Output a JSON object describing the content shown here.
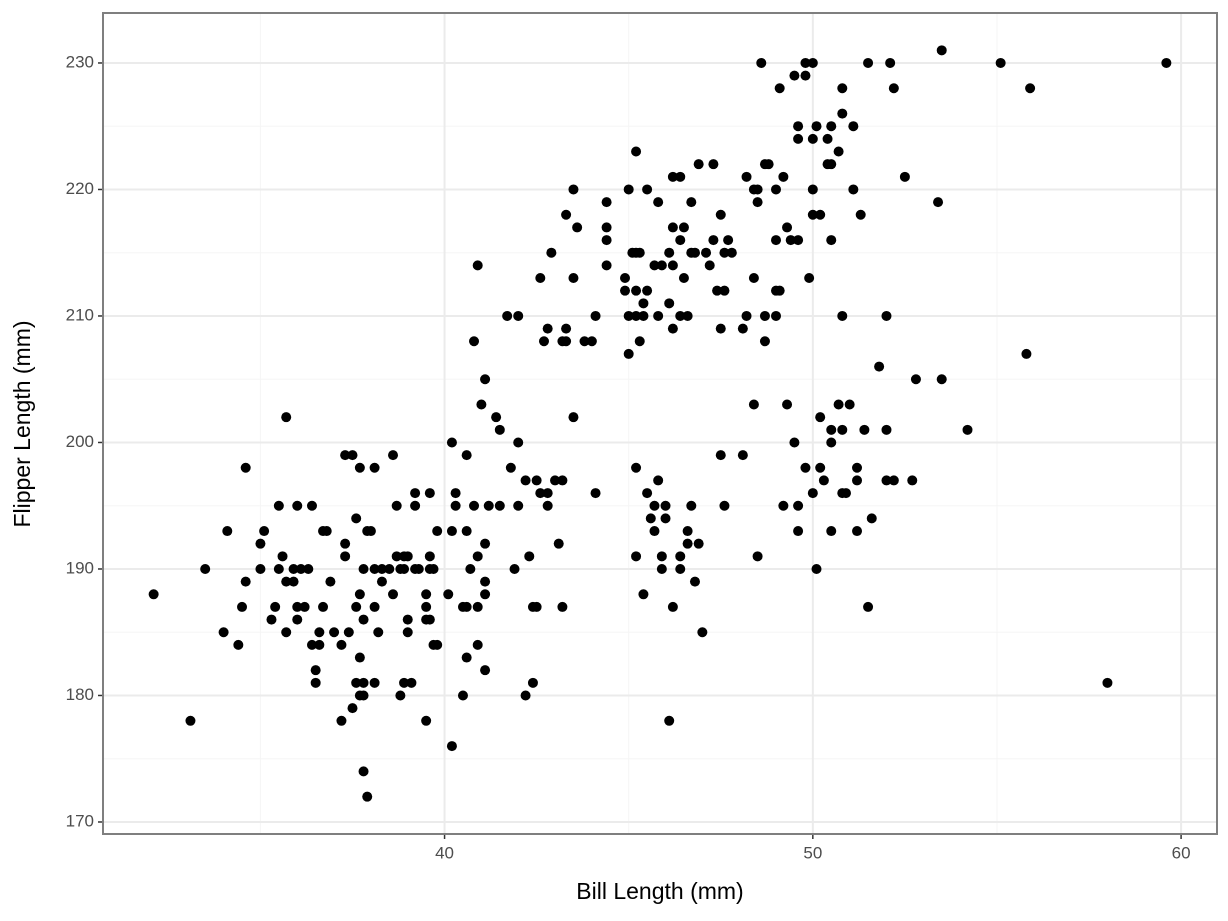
{
  "chart_data": {
    "type": "scatter",
    "x_label": "Bill Length (mm)",
    "y_label": "Flipper Length (mm)",
    "xlim": [
      30.725,
      60.975
    ],
    "ylim": [
      169.05,
      233.95
    ],
    "xticks": [
      40,
      50,
      60
    ],
    "yticks": [
      170,
      180,
      190,
      200,
      210,
      220,
      230
    ],
    "xminor": [
      35,
      45,
      55
    ],
    "yminor": [
      175,
      185,
      195,
      205,
      215,
      225
    ],
    "grid": true,
    "color": "#000000",
    "series": [
      {
        "color": "#000000",
        "x": [
          48.6,
          49.5,
          49.8,
          49.8,
          50.0,
          49.1,
          50.8,
          51.5,
          52.1,
          52.2,
          53.5,
          55.1,
          55.9,
          59.6,
          49.6,
          49.6,
          50.0,
          50.1,
          50.4,
          50.5,
          50.8,
          51.1,
          50.7,
          50.4,
          50.5,
          48.7,
          48.8,
          48.2,
          49.2,
          52.5,
          48.4,
          48.5,
          49.0,
          50.0,
          51.1,
          48.5,
          53.4,
          49.3,
          50.0,
          50.2,
          51.3,
          49.0,
          49.4,
          49.6,
          50.5,
          49.9,
          48.4,
          49.0,
          49.1,
          48.7,
          49.0,
          50.8,
          52.0,
          48.7,
          48.1,
          48.2,
          45.2,
          44.4,
          45.0,
          45.5,
          45.8,
          43.5,
          43.3,
          43.6,
          44.4,
          44.4,
          42.9,
          45.1,
          45.2,
          45.3,
          46.1,
          46.2,
          46.5,
          46.4,
          46.9,
          47.3,
          46.2,
          46.4,
          46.7,
          47.5,
          47.3,
          47.7,
          47.8,
          47.1,
          46.8,
          46.7,
          47.6,
          45.9,
          45.7,
          44.4,
          46.2,
          47.2,
          46.5,
          44.9,
          43.5,
          42.6,
          44.9,
          45.2,
          45.5,
          47.4,
          47.6,
          45.4,
          46.1,
          44.1,
          45.0,
          45.2,
          45.4,
          45.8,
          46.4,
          46.6,
          41.7,
          42.0,
          42.8,
          43.3,
          46.2,
          47.5,
          42.7,
          43.2,
          43.3,
          43.8,
          44.0,
          45.3,
          45.0,
          40.8,
          40.9,
          55.8,
          51.8,
          52.8,
          53.5,
          41.1,
          48.4,
          49.3,
          50.7,
          51.0,
          41.0,
          54.2,
          50.5,
          50.8,
          51.4,
          52.0,
          50.2,
          50.5,
          41.4,
          41.5,
          35.7,
          43.5,
          42.0,
          40.2,
          49.5,
          47.5,
          48.1,
          49.8,
          50.2,
          51.2,
          45.2,
          41.8,
          40.6,
          50.3,
          51.2,
          52.0,
          52.2,
          52.7,
          45.8,
          42.2,
          42.5,
          43.0,
          43.2,
          50.0,
          50.8,
          50.9,
          51.6,
          45.5,
          42.6,
          42.8,
          44.1,
          40.3,
          49.2,
          49.6,
          47.6,
          46.7,
          46.0,
          45.7,
          42.8,
          42.0,
          41.2,
          41.5,
          40.8,
          40.3,
          45.6,
          46.0,
          45.7,
          49.6,
          50.5,
          51.2,
          46.6,
          39.8,
          40.2,
          40.6,
          43.1,
          46.9,
          46.6,
          41.1,
          45.9,
          46.4,
          48.5,
          45.2,
          42.3,
          40.9,
          50.1,
          45.9,
          46.4,
          41.9,
          40.7,
          46.8,
          41.1,
          45.4,
          41.1,
          40.1,
          51.5,
          46.2,
          43.2,
          42.4,
          42.5,
          40.5,
          40.6,
          40.9,
          47.0,
          46.1,
          58.0,
          32.1,
          33.1,
          33.5,
          34.0,
          34.1,
          34.4,
          34.5,
          34.6,
          34.6,
          35.0,
          35.1,
          35.0,
          35.3,
          35.4,
          35.5,
          35.5,
          35.6,
          35.7,
          35.7,
          35.9,
          35.9,
          36.0,
          36.0,
          36.0,
          36.1,
          36.2,
          36.3,
          36.4,
          36.4,
          36.5,
          36.5,
          36.6,
          36.6,
          36.7,
          36.7,
          36.8,
          36.9,
          37.0,
          37.2,
          37.2,
          37.3,
          37.3,
          37.3,
          37.5,
          37.4,
          37.5,
          37.6,
          37.6,
          37.6,
          37.7,
          37.7,
          37.7,
          37.7,
          37.8,
          37.8,
          37.8,
          37.9,
          37.8,
          37.8,
          37.9,
          38.0,
          38.1,
          38.1,
          38.1,
          38.1,
          38.2,
          38.3,
          38.3,
          38.5,
          38.6,
          38.6,
          38.7,
          38.7,
          38.8,
          38.8,
          38.9,
          38.9,
          38.9,
          39.0,
          39.0,
          39.0,
          39.1,
          39.2,
          39.2,
          39.2,
          39.3,
          39.5,
          39.5,
          39.5,
          39.5,
          39.6,
          39.6,
          39.6,
          39.6,
          39.7,
          39.7,
          39.8,
          40.2,
          40.5,
          40.6,
          40.9,
          41.1,
          42.2,
          42.4
        ],
        "y": [
          230,
          229,
          229,
          230,
          230,
          228,
          228,
          230,
          230,
          228,
          231,
          230,
          228,
          230,
          225,
          224,
          224,
          225,
          224,
          225,
          226,
          225,
          223,
          222,
          222,
          222,
          222,
          221,
          221,
          221,
          220,
          220,
          220,
          220,
          220,
          219,
          219,
          217,
          218,
          218,
          218,
          216,
          216,
          216,
          216,
          213,
          213,
          212,
          212,
          210,
          210,
          210,
          210,
          208,
          209,
          210,
          223,
          219,
          220,
          220,
          219,
          220,
          218,
          217,
          217,
          216,
          215,
          215,
          215,
          215,
          215,
          217,
          217,
          216,
          222,
          222,
          221,
          221,
          219,
          218,
          216,
          216,
          215,
          215,
          215,
          215,
          215,
          214,
          214,
          214,
          214,
          214,
          213,
          213,
          213,
          213,
          212,
          212,
          212,
          212,
          212,
          211,
          211,
          210,
          210,
          210,
          210,
          210,
          210,
          210,
          210,
          210,
          209,
          209,
          209,
          209,
          208,
          208,
          208,
          208,
          208,
          208,
          207,
          208,
          214,
          207,
          206,
          205,
          205,
          205,
          203,
          203,
          203,
          203,
          203,
          201,
          201,
          201,
          201,
          201,
          202,
          200,
          202,
          201,
          202,
          202,
          200,
          200,
          200,
          199,
          199,
          198,
          198,
          198,
          198,
          198,
          199,
          197,
          197,
          197,
          197,
          197,
          197,
          197,
          197,
          197,
          197,
          196,
          196,
          196,
          194,
          196,
          196,
          196,
          196,
          196,
          195,
          195,
          195,
          195,
          195,
          195,
          195,
          195,
          195,
          195,
          195,
          195,
          194,
          194,
          193,
          193,
          193,
          193,
          193,
          193,
          193,
          193,
          192,
          192,
          192,
          192,
          191,
          191,
          191,
          191,
          191,
          191,
          190,
          190,
          190,
          190,
          190,
          189,
          189,
          188,
          188,
          188,
          187,
          187,
          187,
          187,
          187,
          187,
          187,
          187,
          185,
          178,
          181,
          188,
          178,
          190,
          185,
          193,
          184,
          187,
          189,
          198,
          192,
          193,
          190,
          186,
          187,
          195,
          190,
          191,
          185,
          189,
          190,
          189,
          186,
          195,
          187,
          190,
          187,
          190,
          195,
          184,
          181,
          182,
          184,
          185,
          187,
          193,
          193,
          189,
          185,
          184,
          178,
          192,
          191,
          199,
          199,
          185,
          179,
          194,
          181,
          187,
          188,
          183,
          180,
          198,
          181,
          186,
          174,
          172,
          190,
          180,
          193,
          193,
          198,
          187,
          181,
          190,
          185,
          189,
          190,
          190,
          199,
          188,
          191,
          195,
          190,
          180,
          191,
          181,
          190,
          185,
          186,
          191,
          181,
          195,
          196,
          190,
          190,
          178,
          188,
          186,
          187,
          196,
          186,
          190,
          191,
          190,
          184,
          184,
          176,
          180,
          183,
          184,
          182,
          180,
          181
        ]
      }
    ]
  }
}
